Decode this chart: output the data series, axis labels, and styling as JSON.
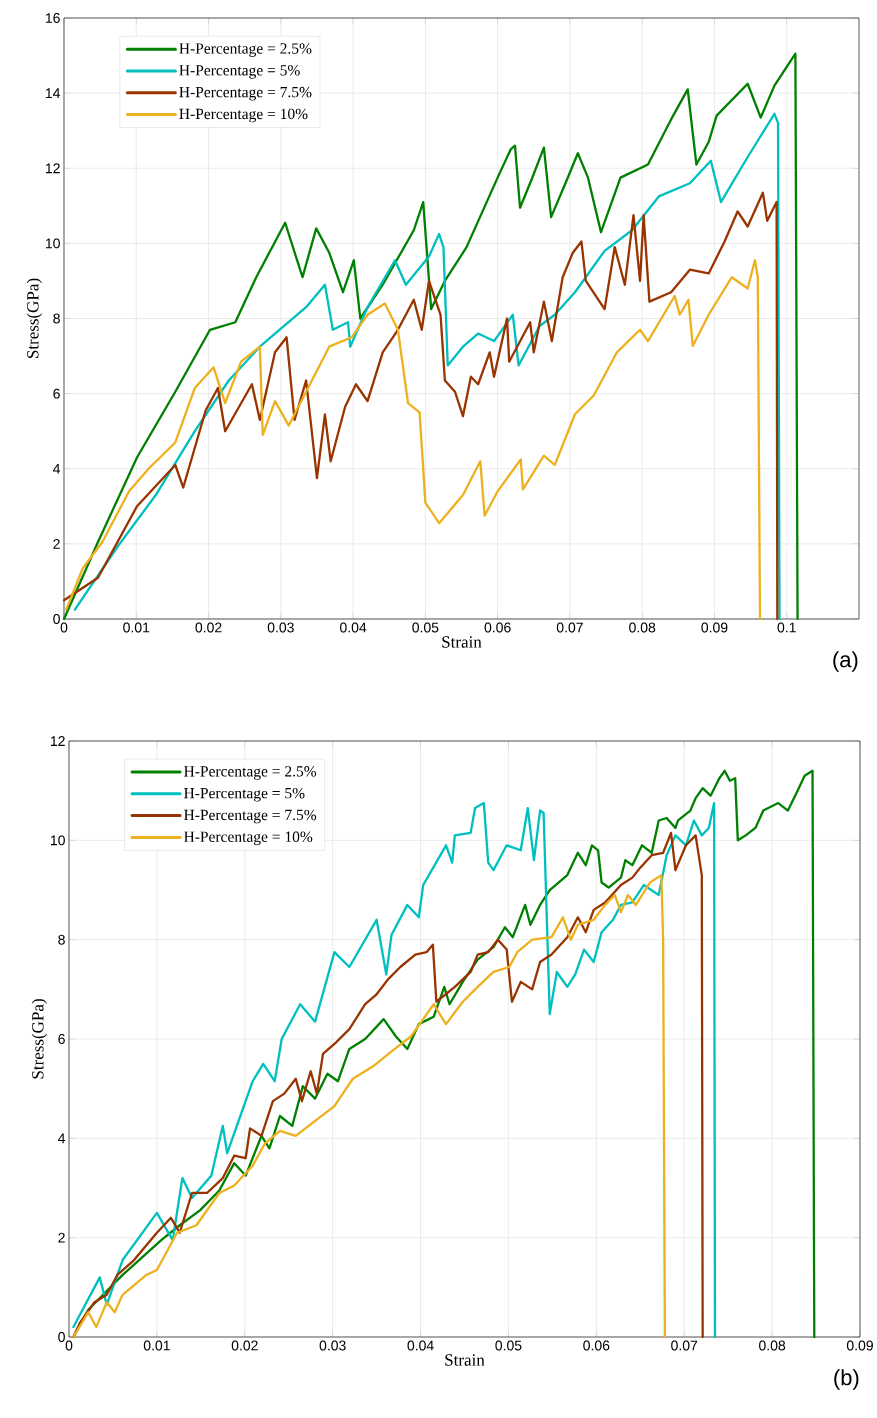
{
  "chart_data": [
    {
      "type": "line",
      "xlabel": "Strain",
      "ylabel": "Stress(GPa)",
      "xlim": [
        0,
        0.11
      ],
      "ylim": [
        0,
        16
      ],
      "xticks": [
        0,
        0.01,
        0.02,
        0.03,
        0.04,
        0.05,
        0.06,
        0.07,
        0.08,
        0.09,
        0.1
      ],
      "yticks": [
        0,
        2,
        4,
        6,
        8,
        10,
        12,
        14,
        16
      ],
      "grid": true,
      "legend": "top left",
      "annotations": [
        "(a)"
      ],
      "series": [
        {
          "name": "H-Percentage = 2.5%",
          "color": "#008000",
          "x": [
            0,
            0.0047,
            0.0101,
            0.0154,
            0.0202,
            0.0237,
            0.0266,
            0.0306,
            0.033,
            0.0349,
            0.0367,
            0.0386,
            0.0401,
            0.041,
            0.0441,
            0.0484,
            0.0497,
            0.0508,
            0.0527,
            0.0557,
            0.06,
            0.0618,
            0.0624,
            0.0631,
            0.0647,
            0.0664,
            0.0674,
            0.0696,
            0.0711,
            0.0725,
            0.0743,
            0.077,
            0.0808,
            0.084,
            0.0863,
            0.0875,
            0.0892,
            0.0903,
            0.0946,
            0.0964,
            0.0983,
            0.1012,
            0.1015
          ],
          "values": [
            0,
            2.05,
            4.3,
            6.05,
            7.7,
            7.9,
            9.1,
            10.55,
            9.1,
            10.4,
            9.75,
            8.7,
            9.55,
            8.0,
            8.9,
            10.35,
            11.1,
            8.25,
            9.0,
            9.9,
            11.75,
            12.5,
            12.6,
            10.95,
            11.7,
            12.55,
            10.7,
            11.7,
            12.4,
            11.75,
            10.3,
            11.75,
            12.1,
            13.3,
            14.1,
            12.1,
            12.7,
            13.4,
            14.25,
            13.35,
            14.2,
            15.05,
            0
          ]
        },
        {
          "name": "H-Percentage = 5%",
          "color": "#00bfbf",
          "x": [
            0.0015,
            0.0075,
            0.0127,
            0.0181,
            0.0228,
            0.0271,
            0.0292,
            0.0335,
            0.0361,
            0.0372,
            0.0393,
            0.0396,
            0.042,
            0.0458,
            0.0473,
            0.0505,
            0.0519,
            0.0525,
            0.0531,
            0.0552,
            0.0573,
            0.0595,
            0.0621,
            0.0629,
            0.0658,
            0.0679,
            0.0707,
            0.0748,
            0.0786,
            0.0823,
            0.0866,
            0.0895,
            0.0909,
            0.0946,
            0.0983,
            0.0988,
            0.099
          ],
          "values": [
            0.25,
            1.95,
            3.3,
            5.0,
            6.35,
            7.25,
            7.6,
            8.3,
            8.9,
            7.7,
            7.9,
            7.25,
            8.3,
            9.55,
            8.9,
            9.65,
            10.25,
            9.9,
            6.75,
            7.25,
            7.6,
            7.4,
            8.1,
            6.75,
            7.8,
            8.1,
            8.7,
            9.8,
            10.35,
            11.25,
            11.6,
            12.2,
            11.1,
            12.3,
            13.45,
            13.2,
            0
          ]
        },
        {
          "name": "H-Percentage = 7.5%",
          "color": "#993300",
          "x": [
            0,
            0.0047,
            0.0101,
            0.0154,
            0.0165,
            0.0196,
            0.0213,
            0.0223,
            0.026,
            0.0271,
            0.0292,
            0.0308,
            0.0319,
            0.0335,
            0.035,
            0.0361,
            0.0369,
            0.0389,
            0.0404,
            0.042,
            0.0441,
            0.0462,
            0.0484,
            0.0495,
            0.0505,
            0.0521,
            0.0527,
            0.0541,
            0.0552,
            0.0563,
            0.0573,
            0.0589,
            0.0595,
            0.0613,
            0.0616,
            0.0645,
            0.065,
            0.0664,
            0.0675,
            0.069,
            0.0704,
            0.0716,
            0.0722,
            0.0748,
            0.0762,
            0.0776,
            0.0788,
            0.0797,
            0.0802,
            0.081,
            0.084,
            0.0866,
            0.0892,
            0.0914,
            0.0932,
            0.0946,
            0.0967,
            0.0973,
            0.0986,
            0.0987
          ],
          "values": [
            0.5,
            1.1,
            3.0,
            4.1,
            3.5,
            5.55,
            6.15,
            5.0,
            6.25,
            5.3,
            7.1,
            7.5,
            5.3,
            6.35,
            3.75,
            5.45,
            4.2,
            5.65,
            6.25,
            5.8,
            7.1,
            7.7,
            8.5,
            7.7,
            9.0,
            8.1,
            6.35,
            6.05,
            5.4,
            6.45,
            6.25,
            7.1,
            6.45,
            8.0,
            6.85,
            7.9,
            7.1,
            8.45,
            7.4,
            9.1,
            9.75,
            10.05,
            9.0,
            8.25,
            9.9,
            8.9,
            10.75,
            9.0,
            10.75,
            8.45,
            8.7,
            9.3,
            9.2,
            10.05,
            10.85,
            10.45,
            11.35,
            10.6,
            11.1,
            0
          ]
        },
        {
          "name": "H-Percentage = 10%",
          "color": "#edb120",
          "x": [
            0.0003,
            0.0026,
            0.0053,
            0.009,
            0.0117,
            0.0154,
            0.0181,
            0.0207,
            0.0223,
            0.0245,
            0.0271,
            0.0275,
            0.0292,
            0.0311,
            0.0335,
            0.0367,
            0.0398,
            0.042,
            0.0444,
            0.0462,
            0.0476,
            0.0492,
            0.05,
            0.0519,
            0.0552,
            0.0576,
            0.0582,
            0.06,
            0.0632,
            0.0635,
            0.0664,
            0.0679,
            0.0707,
            0.0733,
            0.0765,
            0.0797,
            0.0808,
            0.0845,
            0.0852,
            0.0864,
            0.087,
            0.0892,
            0.0924,
            0.0946,
            0.0956,
            0.096,
            0.0963
          ],
          "values": [
            0.25,
            1.35,
            2.05,
            3.4,
            4.0,
            4.7,
            6.15,
            6.7,
            5.75,
            6.85,
            7.25,
            4.9,
            5.8,
            5.15,
            6.05,
            7.25,
            7.5,
            8.1,
            8.4,
            7.7,
            5.75,
            5.5,
            3.1,
            2.55,
            3.3,
            4.2,
            2.75,
            3.4,
            4.25,
            3.45,
            4.35,
            4.1,
            5.45,
            5.95,
            7.1,
            7.7,
            7.4,
            8.6,
            8.1,
            8.5,
            7.27,
            8.1,
            9.1,
            8.8,
            9.55,
            9.1,
            0
          ]
        }
      ]
    },
    {
      "type": "line",
      "xlabel": "Strain",
      "ylabel": "Stress(GPa)",
      "xlim": [
        0,
        0.09
      ],
      "ylim": [
        0,
        12
      ],
      "xticks": [
        0,
        0.01,
        0.02,
        0.03,
        0.04,
        0.05,
        0.06,
        0.07,
        0.08,
        0.09
      ],
      "yticks": [
        0,
        2,
        4,
        6,
        8,
        10,
        12
      ],
      "grid": true,
      "legend": "top left",
      "annotations": [
        "(b)"
      ],
      "series": [
        {
          "name": "H-Percentage = 2.5%",
          "color": "#008000",
          "x": [
            0.0005,
            0.0022,
            0.0061,
            0.0105,
            0.0126,
            0.0149,
            0.0171,
            0.0188,
            0.0201,
            0.0219,
            0.0228,
            0.024,
            0.0254,
            0.0266,
            0.028,
            0.0294,
            0.0306,
            0.0319,
            0.0337,
            0.0358,
            0.0372,
            0.0385,
            0.0398,
            0.0415,
            0.0427,
            0.0433,
            0.0448,
            0.0465,
            0.0483,
            0.0496,
            0.0505,
            0.0519,
            0.0525,
            0.0536,
            0.0547,
            0.0557,
            0.0567,
            0.0579,
            0.0588,
            0.0595,
            0.0602,
            0.0606,
            0.0614,
            0.0628,
            0.0633,
            0.0641,
            0.0652,
            0.0663,
            0.0671,
            0.068,
            0.069,
            0.0693,
            0.0707,
            0.0713,
            0.0721,
            0.073,
            0.074,
            0.0746,
            0.0752,
            0.0758,
            0.0761,
            0.077,
            0.0781,
            0.079,
            0.0807,
            0.0818,
            0.0829,
            0.0837,
            0.0846,
            0.0848
          ],
          "values": [
            0,
            0.55,
            1.25,
            1.95,
            2.25,
            2.55,
            2.95,
            3.5,
            3.25,
            4.05,
            3.8,
            4.45,
            4.25,
            5.05,
            4.8,
            5.3,
            5.15,
            5.8,
            6.0,
            6.4,
            6.05,
            5.8,
            6.3,
            6.45,
            7.05,
            6.7,
            7.15,
            7.6,
            7.85,
            8.25,
            8.05,
            8.7,
            8.3,
            8.7,
            9.0,
            9.15,
            9.3,
            9.75,
            9.5,
            9.9,
            9.8,
            9.15,
            9.05,
            9.25,
            9.6,
            9.5,
            9.9,
            9.75,
            10.4,
            10.45,
            10.25,
            10.4,
            10.6,
            10.85,
            11.05,
            10.9,
            11.25,
            11.4,
            11.2,
            11.25,
            10.0,
            10.1,
            10.25,
            10.6,
            10.75,
            10.6,
            11.0,
            11.3,
            11.4,
            0
          ]
        },
        {
          "name": "H-Percentage = 5%",
          "color": "#00bfbf",
          "x": [
            0.0005,
            0.0035,
            0.0043,
            0.0061,
            0.01,
            0.0118,
            0.0129,
            0.014,
            0.0162,
            0.0175,
            0.018,
            0.0209,
            0.0221,
            0.0234,
            0.0242,
            0.0263,
            0.028,
            0.0302,
            0.0319,
            0.035,
            0.0361,
            0.0367,
            0.0385,
            0.0398,
            0.0403,
            0.0429,
            0.0436,
            0.0439,
            0.0457,
            0.0462,
            0.0472,
            0.0477,
            0.0483,
            0.0498,
            0.0514,
            0.0522,
            0.0529,
            0.0536,
            0.054,
            0.0547,
            0.0555,
            0.0567,
            0.0576,
            0.0586,
            0.0597,
            0.0606,
            0.0619,
            0.0628,
            0.0641,
            0.0654,
            0.0671,
            0.068,
            0.069,
            0.0702,
            0.0711,
            0.072,
            0.0728,
            0.0734,
            0.0735
          ],
          "values": [
            0.2,
            1.2,
            0.65,
            1.55,
            2.5,
            1.95,
            3.2,
            2.8,
            3.25,
            4.25,
            3.7,
            5.15,
            5.5,
            5.15,
            6.0,
            6.7,
            6.35,
            7.75,
            7.45,
            8.4,
            7.3,
            8.1,
            8.7,
            8.45,
            9.1,
            9.9,
            9.55,
            10.1,
            10.15,
            10.65,
            10.75,
            9.55,
            9.4,
            9.9,
            9.8,
            10.65,
            9.6,
            10.6,
            10.55,
            6.5,
            7.35,
            7.05,
            7.3,
            7.8,
            7.55,
            8.15,
            8.4,
            8.7,
            8.75,
            9.1,
            8.9,
            9.7,
            10.1,
            9.9,
            10.4,
            10.1,
            10.25,
            10.75,
            0
          ]
        },
        {
          "name": "H-Percentage = 7.5%",
          "color": "#993300",
          "x": [
            0.0005,
            0.0013,
            0.0029,
            0.0043,
            0.0055,
            0.0074,
            0.01,
            0.0116,
            0.0126,
            0.014,
            0.0157,
            0.0175,
            0.0188,
            0.0201,
            0.0206,
            0.0219,
            0.0232,
            0.0245,
            0.0258,
            0.0265,
            0.0275,
            0.0282,
            0.0289,
            0.0302,
            0.0319,
            0.0337,
            0.035,
            0.0363,
            0.0377,
            0.0394,
            0.0407,
            0.0414,
            0.0418,
            0.0439,
            0.0457,
            0.0465,
            0.0477,
            0.0488,
            0.0498,
            0.0504,
            0.0514,
            0.0527,
            0.0536,
            0.0549,
            0.0567,
            0.0579,
            0.0588,
            0.0597,
            0.061,
            0.0628,
            0.0641,
            0.065,
            0.0663,
            0.0676,
            0.0685,
            0.069,
            0.0702,
            0.0713,
            0.072,
            0.0721
          ],
          "values": [
            0,
            0.3,
            0.7,
            0.85,
            1.25,
            1.55,
            2.1,
            2.4,
            2.1,
            2.9,
            2.9,
            3.2,
            3.65,
            3.6,
            4.2,
            4.05,
            4.75,
            4.9,
            5.2,
            4.75,
            5.35,
            4.9,
            5.7,
            5.9,
            6.2,
            6.7,
            6.9,
            7.2,
            7.45,
            7.7,
            7.75,
            7.9,
            6.75,
            7.05,
            7.35,
            7.7,
            7.75,
            8.0,
            7.8,
            6.75,
            7.15,
            7.0,
            7.55,
            7.7,
            8.05,
            8.45,
            8.15,
            8.6,
            8.75,
            9.1,
            9.25,
            9.45,
            9.7,
            9.75,
            10.15,
            9.4,
            9.9,
            10.1,
            9.3,
            0
          ]
        },
        {
          "name": "H-Percentage = 10%",
          "color": "#edb120",
          "x": [
            0.0005,
            0.0022,
            0.0031,
            0.0043,
            0.0052,
            0.0061,
            0.0088,
            0.01,
            0.0123,
            0.0145,
            0.0171,
            0.0188,
            0.0209,
            0.0223,
            0.024,
            0.0258,
            0.028,
            0.0302,
            0.0323,
            0.0346,
            0.0367,
            0.0389,
            0.0415,
            0.0429,
            0.0448,
            0.0465,
            0.0483,
            0.0501,
            0.051,
            0.0527,
            0.0549,
            0.0562,
            0.0571,
            0.0579,
            0.0597,
            0.061,
            0.0621,
            0.0628,
            0.0636,
            0.0645,
            0.0661,
            0.0674,
            0.0676,
            0.0678
          ],
          "values": [
            0,
            0.5,
            0.2,
            0.7,
            0.5,
            0.85,
            1.25,
            1.35,
            2.1,
            2.25,
            2.9,
            3.05,
            3.45,
            3.9,
            4.15,
            4.05,
            4.35,
            4.65,
            5.2,
            5.45,
            5.75,
            6.05,
            6.7,
            6.3,
            6.75,
            7.05,
            7.35,
            7.45,
            7.75,
            8.0,
            8.05,
            8.45,
            8.0,
            8.3,
            8.4,
            8.7,
            8.9,
            8.55,
            8.9,
            8.7,
            9.15,
            9.3,
            8.0,
            0
          ]
        }
      ]
    }
  ]
}
